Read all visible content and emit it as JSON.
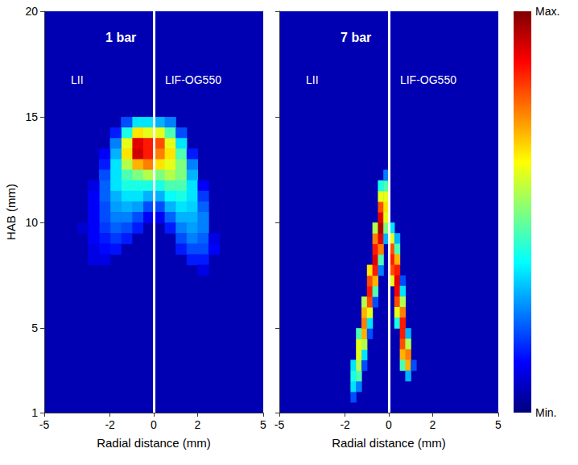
{
  "chart_data": [
    {
      "type": "heatmap",
      "title": "1 bar",
      "annotations": [
        "LII",
        "LIF-OG550"
      ],
      "xlabel": "Radial distance (mm)",
      "ylabel": "HAB (mm)",
      "xlim": [
        -5,
        5
      ],
      "ylim": [
        1,
        20
      ],
      "xticks": [
        -5,
        -2,
        0,
        2,
        5
      ],
      "yticks": [
        1,
        5,
        10,
        15,
        20
      ],
      "grid": false,
      "cell_size": [
        0.5,
        0.5
      ],
      "fill_value": 0.05,
      "divider_x": 0,
      "cells": [
        [
          -0.25,
          14.75,
          0.35
        ],
        [
          -0.75,
          14.75,
          0.35
        ],
        [
          -1.25,
          14.75,
          0.2
        ],
        [
          -0.25,
          14.25,
          0.6
        ],
        [
          -0.75,
          14.25,
          0.65
        ],
        [
          -1.25,
          14.25,
          0.4
        ],
        [
          -1.75,
          14.25,
          0.15
        ],
        [
          -0.25,
          13.75,
          0.85
        ],
        [
          -0.75,
          13.75,
          0.9
        ],
        [
          -1.25,
          13.75,
          0.6
        ],
        [
          -1.75,
          13.75,
          0.25
        ],
        [
          -0.25,
          13.25,
          0.85
        ],
        [
          -0.75,
          13.25,
          0.92
        ],
        [
          -1.25,
          13.25,
          0.65
        ],
        [
          -1.75,
          13.25,
          0.3
        ],
        [
          -2.25,
          13.25,
          0.12
        ],
        [
          -0.25,
          12.75,
          0.75
        ],
        [
          -0.75,
          12.75,
          0.7
        ],
        [
          -1.25,
          12.75,
          0.55
        ],
        [
          -1.75,
          12.75,
          0.35
        ],
        [
          -2.25,
          12.75,
          0.15
        ],
        [
          -0.25,
          12.25,
          0.55
        ],
        [
          -0.75,
          12.25,
          0.5
        ],
        [
          -1.25,
          12.25,
          0.45
        ],
        [
          -1.75,
          12.25,
          0.35
        ],
        [
          -2.25,
          12.25,
          0.2
        ],
        [
          -0.25,
          11.75,
          0.4
        ],
        [
          -0.75,
          11.75,
          0.4
        ],
        [
          -1.25,
          11.75,
          0.4
        ],
        [
          -1.75,
          11.75,
          0.35
        ],
        [
          -2.25,
          11.75,
          0.22
        ],
        [
          -2.75,
          11.75,
          0.1
        ],
        [
          -0.25,
          11.25,
          0.3
        ],
        [
          -0.75,
          11.25,
          0.35
        ],
        [
          -1.25,
          11.25,
          0.35
        ],
        [
          -1.75,
          11.25,
          0.3
        ],
        [
          -2.25,
          11.25,
          0.22
        ],
        [
          -2.75,
          11.25,
          0.12
        ],
        [
          -0.25,
          10.75,
          0.2
        ],
        [
          -0.75,
          10.75,
          0.28
        ],
        [
          -1.25,
          10.75,
          0.3
        ],
        [
          -1.75,
          10.75,
          0.28
        ],
        [
          -2.25,
          10.75,
          0.2
        ],
        [
          -2.75,
          10.75,
          0.12
        ],
        [
          -0.25,
          10.25,
          0.12
        ],
        [
          -0.75,
          10.25,
          0.2
        ],
        [
          -1.25,
          10.25,
          0.25
        ],
        [
          -1.75,
          10.25,
          0.25
        ],
        [
          -2.25,
          10.25,
          0.2
        ],
        [
          -2.75,
          10.25,
          0.12
        ],
        [
          -0.75,
          9.75,
          0.15
        ],
        [
          -1.25,
          9.75,
          0.2
        ],
        [
          -1.75,
          9.75,
          0.22
        ],
        [
          -2.25,
          9.75,
          0.18
        ],
        [
          -2.75,
          9.75,
          0.12
        ],
        [
          -3.25,
          9.75,
          0.08
        ],
        [
          -1.25,
          9.25,
          0.15
        ],
        [
          -1.75,
          9.25,
          0.18
        ],
        [
          -2.25,
          9.25,
          0.15
        ],
        [
          -2.75,
          9.25,
          0.12
        ],
        [
          -1.75,
          8.75,
          0.14
        ],
        [
          -2.25,
          8.75,
          0.13
        ],
        [
          -2.75,
          8.75,
          0.1
        ],
        [
          -2.25,
          8.25,
          0.1
        ],
        [
          -2.75,
          8.25,
          0.1
        ],
        [
          0.25,
          14.75,
          0.3
        ],
        [
          0.75,
          14.75,
          0.25
        ],
        [
          0.25,
          14.25,
          0.6
        ],
        [
          0.75,
          14.25,
          0.45
        ],
        [
          1.25,
          14.25,
          0.2
        ],
        [
          0.25,
          13.75,
          0.8
        ],
        [
          0.75,
          13.75,
          0.6
        ],
        [
          1.25,
          13.75,
          0.35
        ],
        [
          0.25,
          13.25,
          0.75
        ],
        [
          0.75,
          13.25,
          0.65
        ],
        [
          1.25,
          13.25,
          0.45
        ],
        [
          1.75,
          13.25,
          0.15
        ],
        [
          0.25,
          12.75,
          0.65
        ],
        [
          0.75,
          12.75,
          0.6
        ],
        [
          1.25,
          12.75,
          0.5
        ],
        [
          1.75,
          12.75,
          0.25
        ],
        [
          0.25,
          12.25,
          0.5
        ],
        [
          0.75,
          12.25,
          0.55
        ],
        [
          1.25,
          12.25,
          0.5
        ],
        [
          1.75,
          12.25,
          0.3
        ],
        [
          0.25,
          11.75,
          0.4
        ],
        [
          0.75,
          11.75,
          0.45
        ],
        [
          1.25,
          11.75,
          0.45
        ],
        [
          1.75,
          11.75,
          0.35
        ],
        [
          2.25,
          11.75,
          0.12
        ],
        [
          0.25,
          11.25,
          0.3
        ],
        [
          0.75,
          11.25,
          0.38
        ],
        [
          1.25,
          11.25,
          0.4
        ],
        [
          1.75,
          11.25,
          0.35
        ],
        [
          2.25,
          11.25,
          0.18
        ],
        [
          0.25,
          10.75,
          0.2
        ],
        [
          0.75,
          10.75,
          0.3
        ],
        [
          1.25,
          10.75,
          0.35
        ],
        [
          1.75,
          10.75,
          0.33
        ],
        [
          2.25,
          10.75,
          0.22
        ],
        [
          0.25,
          10.25,
          0.12
        ],
        [
          0.75,
          10.25,
          0.22
        ],
        [
          1.25,
          10.25,
          0.3
        ],
        [
          1.75,
          10.25,
          0.3
        ],
        [
          2.25,
          10.25,
          0.25
        ],
        [
          0.75,
          9.75,
          0.15
        ],
        [
          1.25,
          9.75,
          0.25
        ],
        [
          1.75,
          9.75,
          0.28
        ],
        [
          2.25,
          9.75,
          0.25
        ],
        [
          1.25,
          9.25,
          0.2
        ],
        [
          1.75,
          9.25,
          0.25
        ],
        [
          2.25,
          9.25,
          0.22
        ],
        [
          2.75,
          9.25,
          0.1
        ],
        [
          1.25,
          8.75,
          0.15
        ],
        [
          1.75,
          8.75,
          0.2
        ],
        [
          2.25,
          8.75,
          0.2
        ],
        [
          2.75,
          8.75,
          0.12
        ],
        [
          1.75,
          8.25,
          0.15
        ],
        [
          2.25,
          8.25,
          0.15
        ],
        [
          2.25,
          7.75,
          0.1
        ]
      ]
    },
    {
      "type": "heatmap",
      "title": "7 bar",
      "annotations": [
        "LII",
        "LIF-OG550"
      ],
      "xlabel": "Radial distance (mm)",
      "xlim": [
        -5,
        5
      ],
      "ylim": [
        1,
        20
      ],
      "xticks": [
        -5,
        -2,
        0,
        2,
        5
      ],
      "yticks": [
        1,
        5,
        10,
        15,
        20
      ],
      "grid": false,
      "tick_labels": "x",
      "cell_size": [
        0.25,
        0.5
      ],
      "fill_value": 0.05,
      "divider_x": 0,
      "colorbar": {
        "range": [
          0,
          1
        ],
        "ticks": [
          {
            "value": 0,
            "label": "Min."
          },
          {
            "value": 1,
            "label": "Max."
          }
        ]
      },
      "cells": [
        [
          -1.625,
          1.75,
          0.2
        ],
        [
          -1.625,
          2.25,
          0.35
        ],
        [
          -1.375,
          2.25,
          0.25
        ],
        [
          -1.625,
          2.75,
          0.4
        ],
        [
          -1.375,
          2.75,
          0.45
        ],
        [
          -1.625,
          3.25,
          0.35
        ],
        [
          -1.375,
          3.25,
          0.55
        ],
        [
          -1.125,
          3.25,
          0.2
        ],
        [
          -1.375,
          3.75,
          0.6
        ],
        [
          -1.125,
          3.75,
          0.35
        ],
        [
          -1.375,
          4.25,
          0.6
        ],
        [
          -1.125,
          4.25,
          0.55
        ],
        [
          -1.375,
          4.75,
          0.45
        ],
        [
          -1.125,
          4.75,
          0.7
        ],
        [
          -0.875,
          4.75,
          0.2
        ],
        [
          -1.125,
          5.25,
          0.75
        ],
        [
          -0.875,
          5.25,
          0.35
        ],
        [
          -1.125,
          5.75,
          0.7
        ],
        [
          -0.875,
          5.75,
          0.6
        ],
        [
          -1.125,
          6.25,
          0.55
        ],
        [
          -0.875,
          6.25,
          0.8
        ],
        [
          -0.625,
          6.25,
          0.2
        ],
        [
          -0.875,
          6.75,
          0.85
        ],
        [
          -0.625,
          6.75,
          0.45
        ],
        [
          -0.875,
          7.25,
          0.8
        ],
        [
          -0.625,
          7.25,
          0.7
        ],
        [
          -0.875,
          7.75,
          0.65
        ],
        [
          -0.625,
          7.75,
          0.85
        ],
        [
          -0.375,
          7.75,
          0.25
        ],
        [
          -0.625,
          8.25,
          0.9
        ],
        [
          -0.375,
          8.25,
          0.45
        ],
        [
          -0.625,
          8.75,
          0.85
        ],
        [
          -0.375,
          8.75,
          0.75
        ],
        [
          -0.625,
          9.25,
          0.75
        ],
        [
          -0.375,
          9.25,
          0.9
        ],
        [
          -0.125,
          9.25,
          0.3
        ],
        [
          -0.625,
          9.75,
          0.55
        ],
        [
          -0.375,
          9.75,
          0.95
        ],
        [
          -0.125,
          9.75,
          0.5
        ],
        [
          -0.375,
          10.25,
          0.9
        ],
        [
          -0.125,
          10.25,
          0.6
        ],
        [
          -0.375,
          10.75,
          0.8
        ],
        [
          -0.125,
          10.75,
          0.65
        ],
        [
          -0.375,
          11.25,
          0.6
        ],
        [
          -0.125,
          11.25,
          0.6
        ],
        [
          -0.375,
          11.75,
          0.4
        ],
        [
          -0.125,
          11.75,
          0.45
        ],
        [
          -0.125,
          12.25,
          0.25
        ],
        [
          0.125,
          9.75,
          0.35
        ],
        [
          0.125,
          9.25,
          0.6
        ],
        [
          0.375,
          9.25,
          0.3
        ],
        [
          0.125,
          8.75,
          0.8
        ],
        [
          0.375,
          8.75,
          0.45
        ],
        [
          0.125,
          8.25,
          0.85
        ],
        [
          0.375,
          8.25,
          0.7
        ],
        [
          0.125,
          7.75,
          0.8
        ],
        [
          0.375,
          7.75,
          0.85
        ],
        [
          0.125,
          7.25,
          0.6
        ],
        [
          0.375,
          7.25,
          0.9
        ],
        [
          0.625,
          7.25,
          0.2
        ],
        [
          0.375,
          6.75,
          0.88
        ],
        [
          0.625,
          6.75,
          0.35
        ],
        [
          0.375,
          6.25,
          0.8
        ],
        [
          0.625,
          6.25,
          0.55
        ],
        [
          0.375,
          5.75,
          0.6
        ],
        [
          0.625,
          5.75,
          0.75
        ],
        [
          0.375,
          5.25,
          0.4
        ],
        [
          0.625,
          5.25,
          0.85
        ],
        [
          0.625,
          4.75,
          0.85
        ],
        [
          0.875,
          4.75,
          0.3
        ],
        [
          0.625,
          4.25,
          0.8
        ],
        [
          0.875,
          4.25,
          0.55
        ],
        [
          0.625,
          3.75,
          0.7
        ],
        [
          0.875,
          3.75,
          0.75
        ],
        [
          0.625,
          3.25,
          0.45
        ],
        [
          0.875,
          3.25,
          0.7
        ],
        [
          1.125,
          3.25,
          0.2
        ],
        [
          0.875,
          2.75,
          0.3
        ]
      ]
    }
  ]
}
